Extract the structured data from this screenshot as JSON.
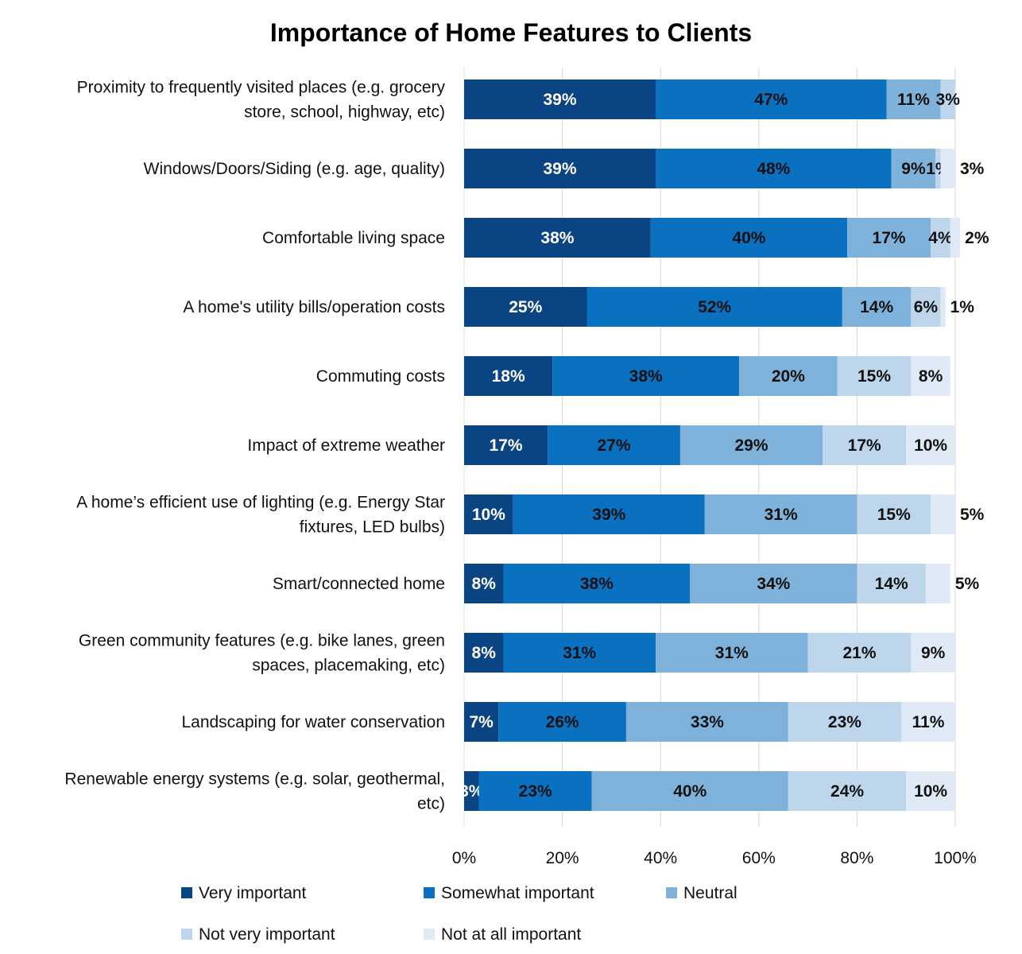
{
  "chart_data": {
    "type": "bar",
    "orientation": "horizontal",
    "stacked": true,
    "title": "Importance of Home Features to Clients",
    "xlim": [
      0,
      100
    ],
    "x_ticks": [
      "0%",
      "20%",
      "40%",
      "60%",
      "80%",
      "100%"
    ],
    "grid": true,
    "legend_position": "bottom",
    "categories": [
      "Proximity to frequently visited places (e.g. grocery store, school, highway, etc)",
      "Windows/Doors/Siding (e.g. age, quality)",
      "Comfortable living space",
      "A home's utility bills/operation costs",
      "Commuting costs",
      "Impact of extreme weather",
      "A home’s efficient use of lighting (e.g. Energy Star fixtures, LED bulbs)",
      "Smart/connected home",
      "Green community features (e.g. bike lanes, green spaces, placemaking, etc)",
      "Landscaping for water conservation",
      "Renewable energy systems (e.g. solar, geothermal, etc)"
    ],
    "category_lines": [
      [
        "Proximity to frequently visited places (e.g. grocery",
        "store, school, highway, etc)"
      ],
      [
        "Windows/Doors/Siding (e.g. age, quality)"
      ],
      [
        "Comfortable living space"
      ],
      [
        "A home's utility bills/operation costs"
      ],
      [
        "Commuting costs"
      ],
      [
        "Impact of extreme weather"
      ],
      [
        "A home’s efficient use of lighting (e.g. Energy Star",
        "fixtures, LED bulbs)"
      ],
      [
        "Smart/connected home"
      ],
      [
        "Green community features (e.g. bike lanes, green",
        "spaces, placemaking, etc)"
      ],
      [
        "Landscaping for water conservation"
      ],
      [
        "Renewable energy systems (e.g. solar, geothermal,",
        "etc)"
      ]
    ],
    "series": [
      {
        "name": "Very important",
        "color": "#0b4482",
        "label_color": "#ffffff",
        "values": [
          39,
          39,
          38,
          25,
          18,
          17,
          10,
          8,
          8,
          7,
          3
        ]
      },
      {
        "name": "Somewhat important",
        "color": "#0a70c0",
        "label_color": "#111111",
        "values": [
          47,
          48,
          40,
          52,
          38,
          27,
          39,
          38,
          31,
          26,
          23
        ]
      },
      {
        "name": "Neutral",
        "color": "#7fb2da",
        "label_color": "#111111",
        "values": [
          11,
          9,
          17,
          14,
          20,
          29,
          31,
          34,
          31,
          33,
          40
        ]
      },
      {
        "name": "Not very important",
        "color": "#bdd6ec",
        "label_color": "#111111",
        "values": [
          3,
          1,
          4,
          6,
          15,
          17,
          15,
          14,
          21,
          23,
          24
        ]
      },
      {
        "name": "Not at all important",
        "color": "#dfeaf6",
        "label_color": "#111111",
        "values": [
          0,
          3,
          2,
          1,
          8,
          10,
          5,
          5,
          9,
          11,
          10
        ]
      }
    ]
  }
}
